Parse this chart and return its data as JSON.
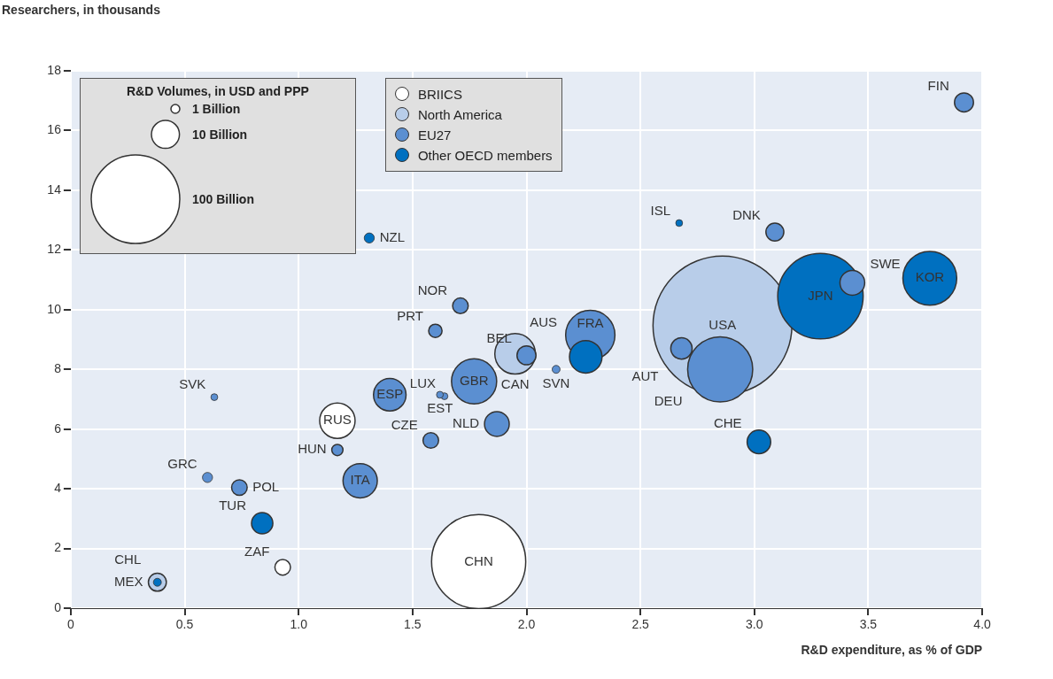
{
  "chart_data": {
    "type": "bubble",
    "xlabel": "R&D expenditure, as % of GDP",
    "ylabel": "Researchers, in thousands",
    "legend_title": "R&D Volumes, in USD and PPP",
    "size_legend": [
      {
        "value": 1,
        "label": "1 Billion"
      },
      {
        "value": 10,
        "label": "10 Billion"
      },
      {
        "value": 100,
        "label": "100 Billion"
      }
    ],
    "xlim": [
      0,
      4
    ],
    "xticks": [
      0,
      0.5,
      {
        "value": 1,
        "label": "1.0"
      },
      1.5,
      {
        "value": 2,
        "label": "2.0"
      },
      2.5,
      {
        "value": 3,
        "label": "3.0"
      },
      3.5,
      {
        "value": 4,
        "label": "4.0"
      }
    ],
    "ylim": [
      0,
      18
    ],
    "yticks": [
      0,
      2,
      4,
      6,
      8,
      10,
      12,
      14,
      16,
      18
    ],
    "grid": true,
    "legend": "top left",
    "series": [
      {
        "name": "BRIICS",
        "color": "#ffffff",
        "x": [
          1.79,
          1.17,
          0.93
        ],
        "values": [
          1.56,
          6.28,
          1.37
        ],
        "sizes": [
          113,
          16,
          3.1
        ],
        "value_labels": [
          "CHN",
          "RUS",
          "ZAF"
        ]
      },
      {
        "name": "North America",
        "color": "#b8cde9",
        "x": [
          2.86,
          1.95,
          0.38
        ],
        "values": [
          9.47,
          8.52,
          0.87
        ],
        "sizes": [
          246,
          21,
          4.1
        ],
        "value_labels": [
          "USA",
          "CAN",
          "MEX"
        ]
      },
      {
        "name": "EU27",
        "color": "#5b8fd1",
        "x": [
          2.85,
          2.28,
          1.77,
          1.4,
          1.27,
          1.87,
          3.43,
          2.68,
          3.92,
          2.0,
          3.09,
          1.71,
          1.6,
          1.58,
          1.17,
          0.6,
          0.74,
          2.13,
          1.62,
          1.64,
          0.63
        ],
        "values": [
          8.0,
          9.15,
          7.6,
          7.15,
          4.27,
          6.17,
          10.9,
          8.7,
          16.94,
          8.47,
          12.6,
          10.13,
          9.29,
          5.62,
          5.3,
          4.38,
          4.04,
          8.0,
          7.15,
          7.1,
          7.07
        ],
        "sizes": [
          54,
          31,
          26,
          13.5,
          15,
          7.8,
          7.8,
          5.8,
          4.6,
          4.6,
          4.1,
          3.1,
          2.3,
          3.1,
          1.6,
          1.3,
          3.1,
          0.8,
          0.6,
          0.6,
          0.6
        ],
        "value_labels": [
          "DEU",
          "FRA",
          "GBR",
          "ESP",
          "ITA",
          "NLD",
          "SWE",
          "AUT",
          "FIN",
          "BEL",
          "DNK",
          "NOR",
          "PRT",
          "CZE",
          "HUN",
          "GRC",
          "POL",
          "SVN",
          "EST",
          "LUX",
          "SVK"
        ]
      },
      {
        "name": "Other OECD members",
        "color": "#0070c0",
        "x": [
          3.29,
          3.77,
          2.26,
          3.02,
          0.84,
          1.31,
          2.67,
          0.38
        ],
        "values": [
          10.45,
          11.05,
          8.42,
          5.57,
          2.85,
          12.4,
          12.9,
          0.87
        ],
        "sizes": [
          93,
          37,
          13.5,
          7.1,
          5.8,
          1.3,
          0.6,
          0.8
        ],
        "value_labels": [
          "JPN",
          "KOR",
          "AUS",
          "CHE",
          "TUR",
          "NZL",
          "ISL",
          "CHL"
        ]
      }
    ]
  }
}
